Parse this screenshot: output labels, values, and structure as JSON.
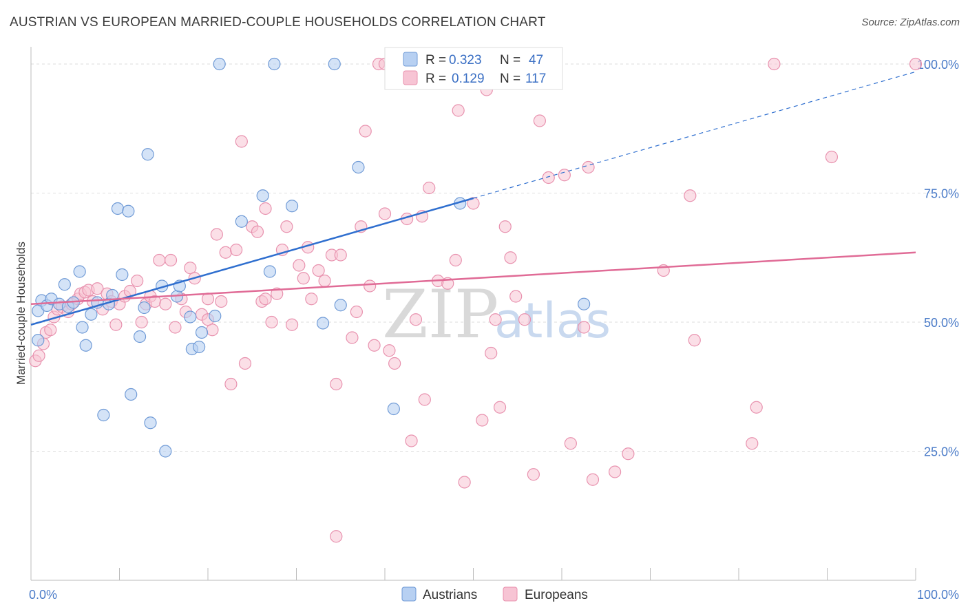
{
  "header": {
    "title": "AUSTRIAN VS EUROPEAN MARRIED-COUPLE HOUSEHOLDS CORRELATION CHART",
    "source": "Source: ZipAtlas.com"
  },
  "legend": {
    "rows": [
      {
        "r_label": "R =",
        "r_value": "0.323",
        "n_label": "N =",
        "n_value": "47"
      },
      {
        "r_label": "R =",
        "r_value": "0.129",
        "n_label": "N =",
        "n_value": "117"
      }
    ]
  },
  "bottom_legend": {
    "austrians": "Austrians",
    "europeans": "Europeans"
  },
  "watermark": {
    "zip": "ZIP",
    "atlas": "atlas"
  },
  "colors": {
    "austrians_fill": "#b7d0f2",
    "austrians_stroke": "#6f9ad6",
    "austrians_line": "#2f6fcf",
    "europeans_fill": "#f7c4d4",
    "europeans_stroke": "#e891ae",
    "europeans_line": "#e06b96",
    "grid": "#dddddd",
    "tick_label": "#4a7bc8"
  },
  "chart_data": {
    "type": "scatter",
    "title": "AUSTRIAN VS EUROPEAN MARRIED-COUPLE HOUSEHOLDS CORRELATION CHART",
    "ylabel": "Married-couple Households",
    "xlabel": "",
    "xlim": [
      0,
      100
    ],
    "ylim": [
      0,
      102
    ],
    "x_tick_labels": [
      {
        "value": 0,
        "label": "0.0%"
      },
      {
        "value": 100,
        "label": "100.0%"
      }
    ],
    "y_tick_labels": [
      {
        "value": 25,
        "label": "25.0%"
      },
      {
        "value": 50,
        "label": "50.0%"
      },
      {
        "value": 75,
        "label": "75.0%"
      },
      {
        "value": 100,
        "label": "100.0%"
      }
    ],
    "grid": true,
    "legend_position": "top-center",
    "series": [
      {
        "name": "Austrians",
        "r": 0.323,
        "n": 47,
        "trend": {
          "x0": 0,
          "y0": 49.5,
          "x1": 50,
          "y1": 74.0,
          "dashed_to_x": 100,
          "dashed_to_y": 98.5
        },
        "points": [
          [
            0.8,
            46.5
          ],
          [
            0.8,
            52.2
          ],
          [
            1.2,
            54.2
          ],
          [
            1.8,
            53.2
          ],
          [
            2.3,
            54.5
          ],
          [
            3.2,
            53.5
          ],
          [
            3.8,
            57.3
          ],
          [
            4.2,
            53.0
          ],
          [
            4.8,
            53.8
          ],
          [
            5.5,
            59.8
          ],
          [
            5.8,
            49.0
          ],
          [
            6.2,
            45.5
          ],
          [
            6.8,
            51.5
          ],
          [
            7.5,
            53.8
          ],
          [
            8.2,
            32.0
          ],
          [
            8.8,
            53.5
          ],
          [
            9.2,
            55.2
          ],
          [
            9.8,
            72.0
          ],
          [
            10.3,
            59.2
          ],
          [
            11.0,
            71.5
          ],
          [
            11.3,
            36.0
          ],
          [
            12.3,
            47.2
          ],
          [
            12.8,
            52.8
          ],
          [
            13.2,
            82.5
          ],
          [
            13.5,
            30.5
          ],
          [
            14.8,
            57.0
          ],
          [
            15.2,
            25.0
          ],
          [
            16.5,
            55.0
          ],
          [
            16.8,
            57.0
          ],
          [
            18.0,
            51.0
          ],
          [
            18.2,
            44.8
          ],
          [
            19.0,
            45.2
          ],
          [
            19.3,
            48.0
          ],
          [
            20.8,
            51.2
          ],
          [
            21.3,
            100.0
          ],
          [
            23.8,
            69.5
          ],
          [
            26.2,
            74.5
          ],
          [
            27.0,
            59.8
          ],
          [
            29.5,
            72.5
          ],
          [
            27.5,
            100.0
          ],
          [
            34.3,
            100.0
          ],
          [
            33.0,
            49.8
          ],
          [
            35.0,
            53.3
          ],
          [
            37.0,
            80.0
          ],
          [
            41.0,
            33.2
          ],
          [
            62.5,
            53.5
          ],
          [
            48.5,
            73.0
          ]
        ]
      },
      {
        "name": "Europeans",
        "r": 0.129,
        "n": 117,
        "trend": {
          "x0": 0,
          "y0": 53.5,
          "x1": 100,
          "y1": 63.5
        },
        "points": [
          [
            0.5,
            42.5
          ],
          [
            0.9,
            43.5
          ],
          [
            1.4,
            45.8
          ],
          [
            1.7,
            48.0
          ],
          [
            2.2,
            48.5
          ],
          [
            2.6,
            51.0
          ],
          [
            3.0,
            52.5
          ],
          [
            3.5,
            53.0
          ],
          [
            4.2,
            52.0
          ],
          [
            4.6,
            53.5
          ],
          [
            5.3,
            54.5
          ],
          [
            5.6,
            55.5
          ],
          [
            6.1,
            55.8
          ],
          [
            6.5,
            56.2
          ],
          [
            7.0,
            54.0
          ],
          [
            7.5,
            56.5
          ],
          [
            8.1,
            52.5
          ],
          [
            8.6,
            55.5
          ],
          [
            9.1,
            54.0
          ],
          [
            9.6,
            49.5
          ],
          [
            10.0,
            53.5
          ],
          [
            10.6,
            55.0
          ],
          [
            11.2,
            56.0
          ],
          [
            12.0,
            58.0
          ],
          [
            12.5,
            50.0
          ],
          [
            13.0,
            53.5
          ],
          [
            13.5,
            55.0
          ],
          [
            14.0,
            54.0
          ],
          [
            14.5,
            62.0
          ],
          [
            15.2,
            53.5
          ],
          [
            15.8,
            62.0
          ],
          [
            16.3,
            49.0
          ],
          [
            17.0,
            54.5
          ],
          [
            17.5,
            52.0
          ],
          [
            18.0,
            60.5
          ],
          [
            18.5,
            58.5
          ],
          [
            19.3,
            51.5
          ],
          [
            20.0,
            54.5
          ],
          [
            20.5,
            48.5
          ],
          [
            21.0,
            67.0
          ],
          [
            21.5,
            54.0
          ],
          [
            22.0,
            63.5
          ],
          [
            22.6,
            38.0
          ],
          [
            23.2,
            64.0
          ],
          [
            23.8,
            85.0
          ],
          [
            24.2,
            42.0
          ],
          [
            25.0,
            68.5
          ],
          [
            25.6,
            67.5
          ],
          [
            26.1,
            54.0
          ],
          [
            26.5,
            72.0
          ],
          [
            27.2,
            50.0
          ],
          [
            27.8,
            55.5
          ],
          [
            28.4,
            64.0
          ],
          [
            28.9,
            68.5
          ],
          [
            29.5,
            49.5
          ],
          [
            30.3,
            61.0
          ],
          [
            30.8,
            58.5
          ],
          [
            31.3,
            64.5
          ],
          [
            31.7,
            54.5
          ],
          [
            32.5,
            60.0
          ],
          [
            33.2,
            58.0
          ],
          [
            34.0,
            63.0
          ],
          [
            34.5,
            38.0
          ],
          [
            35.0,
            63.0
          ],
          [
            36.3,
            47.0
          ],
          [
            36.8,
            52.0
          ],
          [
            37.3,
            68.5
          ],
          [
            37.8,
            87.0
          ],
          [
            38.3,
            57.0
          ],
          [
            38.8,
            45.5
          ],
          [
            39.3,
            100.0
          ],
          [
            40.0,
            71.0
          ],
          [
            40.5,
            44.5
          ],
          [
            41.1,
            42.0
          ],
          [
            42.5,
            70.0
          ],
          [
            43.0,
            27.0
          ],
          [
            43.5,
            50.5
          ],
          [
            44.2,
            70.5
          ],
          [
            45.0,
            76.0
          ],
          [
            46.0,
            58.0
          ],
          [
            47.1,
            57.5
          ],
          [
            48.3,
            91.0
          ],
          [
            49.0,
            19.0
          ],
          [
            50.0,
            73.0
          ],
          [
            51.0,
            31.0
          ],
          [
            51.5,
            95.0
          ],
          [
            52.0,
            44.0
          ],
          [
            52.5,
            50.5
          ],
          [
            53.0,
            33.5
          ],
          [
            53.6,
            68.5
          ],
          [
            54.2,
            62.5
          ],
          [
            54.8,
            55.0
          ],
          [
            55.8,
            50.5
          ],
          [
            56.8,
            20.5
          ],
          [
            57.5,
            89.0
          ],
          [
            58.5,
            78.0
          ],
          [
            60.3,
            78.5
          ],
          [
            61.0,
            26.5
          ],
          [
            62.5,
            49.0
          ],
          [
            63.0,
            80.0
          ],
          [
            63.5,
            19.5
          ],
          [
            66.0,
            21.0
          ],
          [
            67.5,
            24.5
          ],
          [
            71.5,
            60.0
          ],
          [
            74.5,
            74.5
          ],
          [
            75.0,
            46.5
          ],
          [
            81.5,
            26.5
          ],
          [
            82.0,
            33.5
          ],
          [
            84.0,
            100.0
          ],
          [
            90.5,
            82.0
          ],
          [
            100.0,
            100.0
          ],
          [
            40.0,
            100.0
          ],
          [
            34.5,
            8.5
          ],
          [
            26.5,
            54.5
          ],
          [
            44.5,
            35.0
          ],
          [
            48.0,
            62.0
          ],
          [
            20.0,
            50.5
          ]
        ]
      }
    ]
  }
}
